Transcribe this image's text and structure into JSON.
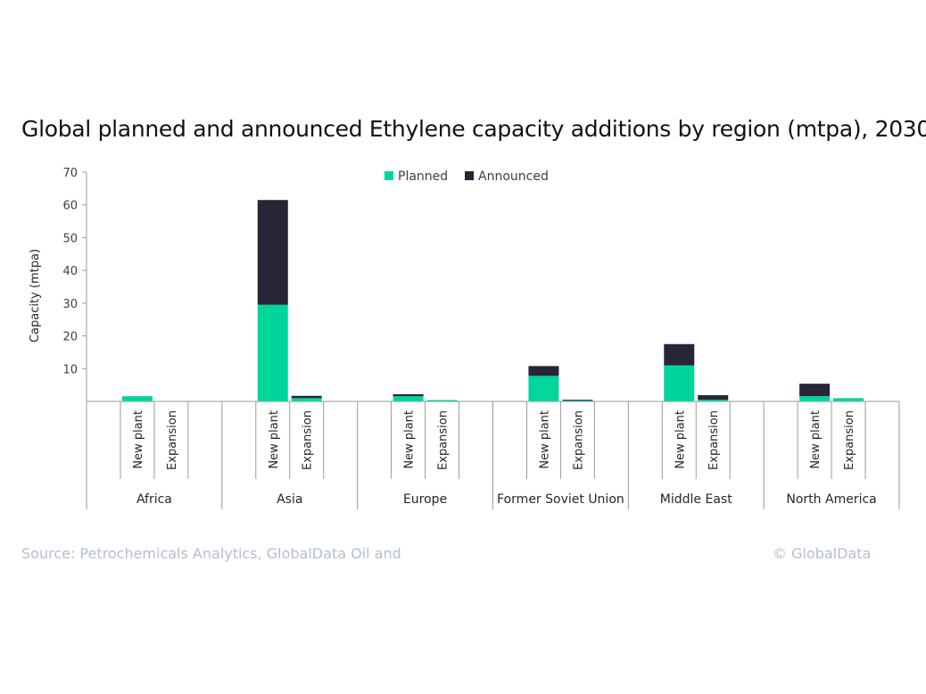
{
  "chart_data": {
    "type": "bar",
    "stacked": true,
    "title": "Global planned and announced Ethylene capacity additions by region (mtpa), 2030",
    "ylabel": "Capacity (mtpa)",
    "xlabel": "",
    "ylim": [
      0,
      70
    ],
    "yticks": [
      10,
      20,
      30,
      40,
      50,
      60,
      70
    ],
    "grid": false,
    "legend_position": "top",
    "groups": [
      {
        "region": "Africa",
        "categories": [
          "New plant",
          "Expansion"
        ]
      },
      {
        "region": "Asia",
        "categories": [
          "New plant",
          "Expansion"
        ]
      },
      {
        "region": "Europe",
        "categories": [
          "New plant",
          "Expansion"
        ]
      },
      {
        "region": "Former Soviet Union",
        "categories": [
          "New plant",
          "Expansion"
        ]
      },
      {
        "region": "Middle East",
        "categories": [
          "New plant",
          "Expansion"
        ]
      },
      {
        "region": "North America",
        "categories": [
          "New plant",
          "Expansion"
        ]
      }
    ],
    "series": [
      {
        "name": "Planned",
        "color": "#00d69c",
        "values": [
          1.6,
          0,
          29.5,
          1.0,
          1.6,
          0.4,
          7.8,
          0.2,
          11.0,
          0.5,
          1.6,
          1.0
        ]
      },
      {
        "name": "Announced",
        "color": "#262637",
        "values": [
          0,
          0,
          32.0,
          0.7,
          0.6,
          0,
          3.0,
          0.3,
          6.5,
          1.4,
          3.8,
          0
        ]
      }
    ]
  },
  "footer": {
    "source": "Source: Petrochemicals Analytics, GlobalData Oil and",
    "credit": "© GlobalData"
  }
}
